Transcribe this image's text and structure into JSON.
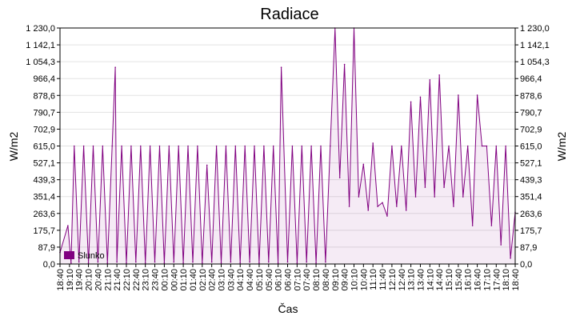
{
  "chart_data": {
    "type": "line",
    "title": "Radiace",
    "xlabel": "Čas",
    "ylabel": "W/m2",
    "y2label": "W/m2",
    "ylim": [
      0,
      1230
    ],
    "yticks": [
      "0,0",
      "87,9",
      "175,7",
      "263,6",
      "351,4",
      "439,3",
      "527,1",
      "615,0",
      "702,9",
      "790,7",
      "878,6",
      "966,4",
      "1 054,3",
      "1 142,1",
      "1 230,0"
    ],
    "yticks_values": [
      0,
      87.9,
      175.7,
      263.6,
      351.4,
      439.3,
      527.1,
      615.0,
      702.9,
      790.7,
      878.6,
      966.4,
      1054.3,
      1142.1,
      1230.0
    ],
    "xticks": [
      "18:40",
      "19:10",
      "19:40",
      "20:10",
      "20:40",
      "21:10",
      "21:40",
      "22:10",
      "22:40",
      "23:10",
      "23:40",
      "00:10",
      "00:40",
      "01:10",
      "01:40",
      "02:10",
      "02:40",
      "03:10",
      "03:40",
      "04:10",
      "04:40",
      "05:10",
      "05:40",
      "06:10",
      "06:40",
      "07:10",
      "07:40",
      "08:10",
      "08:40",
      "09:10",
      "09:40",
      "10:10",
      "10:40",
      "11:10",
      "11:40",
      "12:10",
      "12:40",
      "13:10",
      "13:40",
      "14:10",
      "14:40",
      "15:10",
      "15:40",
      "16:10",
      "16:40",
      "17:10",
      "17:40",
      "18:10",
      "18:40"
    ],
    "grid": true,
    "legend": {
      "position": "bottom-left",
      "entries": [
        "Slunko"
      ]
    },
    "series": [
      {
        "name": "Slunko",
        "color": "#800080",
        "points": [
          [
            "18:40",
            60
          ],
          [
            "19:05",
            200
          ],
          [
            "19:15",
            5
          ],
          [
            "19:25",
            615
          ],
          [
            "19:40",
            10
          ],
          [
            "19:55",
            615
          ],
          [
            "20:10",
            5
          ],
          [
            "20:25",
            615
          ],
          [
            "20:40",
            10
          ],
          [
            "20:55",
            615
          ],
          [
            "21:10",
            5
          ],
          [
            "21:25",
            615
          ],
          [
            "21:35",
            1025
          ],
          [
            "21:40",
            10
          ],
          [
            "21:55",
            615
          ],
          [
            "22:10",
            5
          ],
          [
            "22:25",
            615
          ],
          [
            "22:40",
            10
          ],
          [
            "22:55",
            615
          ],
          [
            "23:10",
            5
          ],
          [
            "23:25",
            615
          ],
          [
            "23:40",
            10
          ],
          [
            "23:55",
            615
          ],
          [
            "00:10",
            5
          ],
          [
            "00:25",
            615
          ],
          [
            "00:40",
            10
          ],
          [
            "00:55",
            615
          ],
          [
            "01:10",
            5
          ],
          [
            "01:25",
            615
          ],
          [
            "01:40",
            10
          ],
          [
            "01:55",
            615
          ],
          [
            "02:10",
            5
          ],
          [
            "02:25",
            515
          ],
          [
            "02:40",
            10
          ],
          [
            "02:55",
            615
          ],
          [
            "03:10",
            5
          ],
          [
            "03:25",
            615
          ],
          [
            "03:40",
            10
          ],
          [
            "03:55",
            615
          ],
          [
            "04:10",
            5
          ],
          [
            "04:25",
            615
          ],
          [
            "04:40",
            10
          ],
          [
            "04:55",
            615
          ],
          [
            "05:10",
            5
          ],
          [
            "05:25",
            615
          ],
          [
            "05:40",
            10
          ],
          [
            "05:55",
            615
          ],
          [
            "06:10",
            5
          ],
          [
            "06:20",
            1025
          ],
          [
            "06:40",
            10
          ],
          [
            "06:55",
            615
          ],
          [
            "07:10",
            5
          ],
          [
            "07:25",
            615
          ],
          [
            "07:40",
            10
          ],
          [
            "07:55",
            615
          ],
          [
            "08:10",
            5
          ],
          [
            "08:25",
            615
          ],
          [
            "08:40",
            10
          ],
          [
            "08:55",
            615
          ],
          [
            "09:10",
            1230
          ],
          [
            "09:25",
            450
          ],
          [
            "09:40",
            1040
          ],
          [
            "09:55",
            300
          ],
          [
            "10:10",
            1230
          ],
          [
            "10:25",
            350
          ],
          [
            "10:40",
            520
          ],
          [
            "10:55",
            280
          ],
          [
            "11:10",
            630
          ],
          [
            "11:25",
            300
          ],
          [
            "11:40",
            320
          ],
          [
            "11:55",
            250
          ],
          [
            "12:10",
            615
          ],
          [
            "12:25",
            300
          ],
          [
            "12:40",
            615
          ],
          [
            "12:55",
            280
          ],
          [
            "13:10",
            845
          ],
          [
            "13:25",
            350
          ],
          [
            "13:40",
            870
          ],
          [
            "13:55",
            400
          ],
          [
            "14:10",
            960
          ],
          [
            "14:25",
            350
          ],
          [
            "14:40",
            985
          ],
          [
            "14:55",
            400
          ],
          [
            "15:10",
            615
          ],
          [
            "15:25",
            300
          ],
          [
            "15:40",
            880
          ],
          [
            "15:55",
            350
          ],
          [
            "16:10",
            615
          ],
          [
            "16:25",
            200
          ],
          [
            "16:40",
            880
          ],
          [
            "16:55",
            615
          ],
          [
            "17:10",
            615
          ],
          [
            "17:25",
            200
          ],
          [
            "17:40",
            615
          ],
          [
            "17:55",
            100
          ],
          [
            "18:10",
            615
          ],
          [
            "18:25",
            30
          ],
          [
            "18:40",
            270
          ]
        ]
      }
    ]
  }
}
